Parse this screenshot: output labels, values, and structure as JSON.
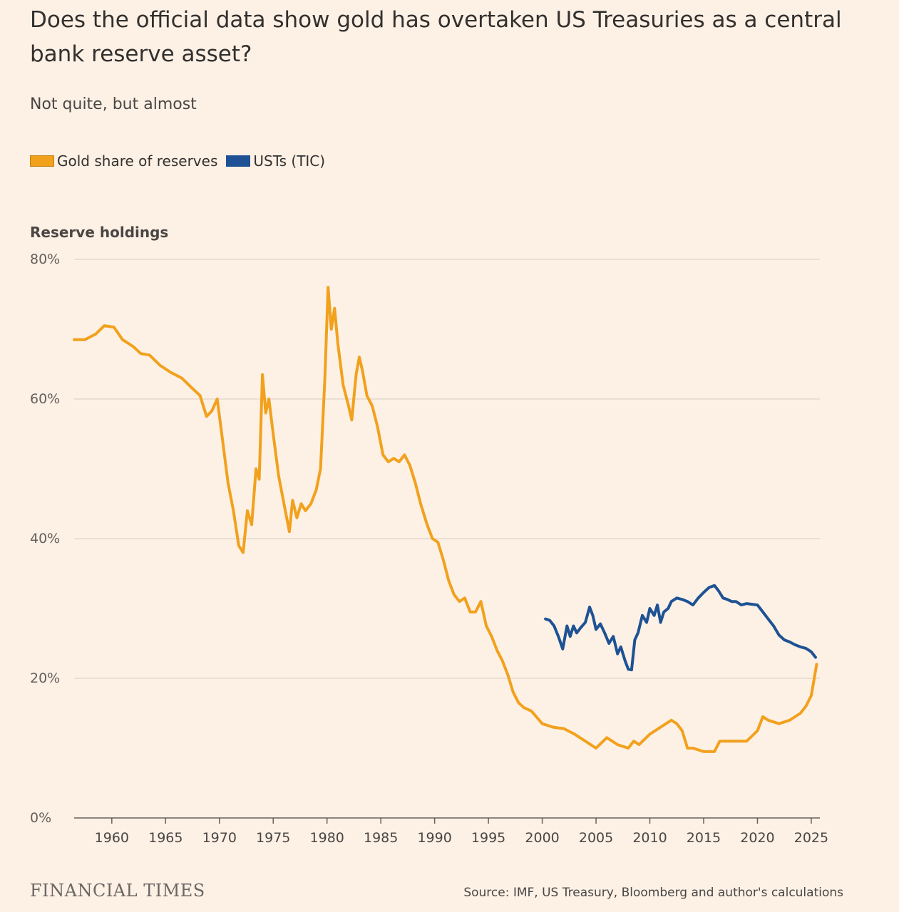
{
  "header": {
    "title": "Does the official data show gold has overtaken US Treasuries as a central bank reserve asset?",
    "subtitle": "Not quite, but almost"
  },
  "legend": [
    {
      "label": "Gold share of reserves",
      "color": "#f2a11d"
    },
    {
      "label": "USTs (TIC)",
      "color": "#1e5294"
    }
  ],
  "footer": {
    "brand": "FINANCIAL TIMES",
    "source": "Source: IMF, US Treasury, Bloomberg and author's calculations"
  },
  "chart_data": {
    "type": "line",
    "title": "Does the official data show gold has overtaken US Treasuries as a central bank reserve asset?",
    "subtitle": "Not quite, but almost",
    "ylabel": "Reserve holdings",
    "xlabel": "",
    "xlim": [
      1956.5,
      2025.8
    ],
    "ylim": [
      0,
      80
    ],
    "yticks": [
      0,
      20,
      40,
      60,
      80
    ],
    "ytick_labels": [
      "0%",
      "20%",
      "40%",
      "60%",
      "80%"
    ],
    "xticks": [
      1960,
      1965,
      1970,
      1975,
      1980,
      1985,
      1990,
      1995,
      2000,
      2005,
      2010,
      2015,
      2020,
      2025
    ],
    "xtick_labels": [
      "1960",
      "1965",
      "1970",
      "1975",
      "1980",
      "1985",
      "1990",
      "1995",
      "2000",
      "2005",
      "2010",
      "2015",
      "2020",
      "2025"
    ],
    "grid": true,
    "series": [
      {
        "name": "Gold share of reserves",
        "color": "#f2a11d",
        "x": [
          1956.5,
          1957.5,
          1958.5,
          1959.3,
          1960.2,
          1961,
          1962,
          1962.7,
          1963.5,
          1964.5,
          1965.5,
          1966.5,
          1967.5,
          1968.2,
          1968.8,
          1969.3,
          1969.8,
          1970.3,
          1970.8,
          1971.3,
          1971.8,
          1972.2,
          1972.6,
          1973,
          1973.4,
          1973.7,
          1974,
          1974.3,
          1974.6,
          1975,
          1975.5,
          1976,
          1976.5,
          1976.8,
          1977.2,
          1977.6,
          1978,
          1978.5,
          1979,
          1979.4,
          1979.8,
          1980.1,
          1980.4,
          1980.7,
          1981,
          1981.5,
          1982,
          1982.3,
          1982.7,
          1983,
          1983.3,
          1983.7,
          1984.2,
          1984.7,
          1985.2,
          1985.7,
          1986.2,
          1986.7,
          1987.2,
          1987.7,
          1988.2,
          1988.7,
          1989.3,
          1989.8,
          1990.3,
          1990.8,
          1991.3,
          1991.8,
          1992.3,
          1992.8,
          1993.3,
          1993.8,
          1994.3,
          1994.8,
          1995.3,
          1995.8,
          1996.3,
          1996.8,
          1997.3,
          1997.8,
          1998.3,
          1999,
          2000,
          2001,
          2002,
          2003,
          2004,
          2005,
          2006,
          2007,
          2008,
          2008.5,
          2009,
          2010,
          2011,
          2012,
          2012.5,
          2013,
          2013.5,
          2014,
          2015,
          2016,
          2016.5,
          2017,
          2018,
          2019,
          2020,
          2020.5,
          2021,
          2022,
          2023,
          2024,
          2024.5,
          2025,
          2025.5
        ],
        "values": [
          68.5,
          68.5,
          69.3,
          70.5,
          70.3,
          68.5,
          67.5,
          66.5,
          66.3,
          64.8,
          63.8,
          63,
          61.5,
          60.5,
          57.5,
          58.3,
          60,
          54,
          48,
          44,
          39,
          38,
          44,
          42,
          50,
          48.5,
          63.5,
          58,
          60,
          55,
          49,
          45,
          41,
          45.5,
          43,
          45,
          44,
          45,
          47,
          50,
          63,
          76,
          70,
          73,
          68,
          62,
          59,
          57,
          63.5,
          66,
          64,
          60.5,
          59,
          56,
          52,
          51,
          51.5,
          51,
          52,
          50.5,
          48,
          45,
          42,
          40,
          39.5,
          37,
          34,
          32,
          31,
          31.5,
          29.5,
          29.5,
          31,
          27.5,
          26,
          24,
          22.5,
          20.5,
          18,
          16.5,
          15.8,
          15.3,
          13.5,
          13,
          12.8,
          12,
          11,
          10,
          11.5,
          10.5,
          10,
          11,
          10.5,
          12,
          13,
          14,
          13.5,
          12.5,
          10,
          10,
          9.5,
          9.5,
          11,
          11,
          11,
          11,
          12.5,
          14.5,
          14,
          13.5,
          14,
          15,
          16,
          17.5,
          22
        ]
      },
      {
        "name": "USTs (TIC)",
        "color": "#1e5294",
        "x": [
          2000.3,
          2000.7,
          2001.1,
          2001.5,
          2001.9,
          2002.3,
          2002.6,
          2002.9,
          2003.2,
          2003.6,
          2004,
          2004.4,
          2004.7,
          2005,
          2005.4,
          2005.8,
          2006.2,
          2006.6,
          2007,
          2007.3,
          2007.7,
          2008,
          2008.3,
          2008.6,
          2008.9,
          2009.3,
          2009.7,
          2010,
          2010.4,
          2010.7,
          2011,
          2011.3,
          2011.7,
          2012,
          2012.5,
          2013,
          2013.5,
          2014,
          2014.5,
          2015,
          2015.5,
          2016,
          2016.4,
          2016.8,
          2017.2,
          2017.6,
          2018,
          2018.5,
          2019,
          2019.5,
          2020,
          2020.5,
          2021,
          2021.5,
          2022,
          2022.5,
          2023,
          2023.5,
          2024,
          2024.5,
          2025,
          2025.4
        ],
        "values": [
          28.5,
          28.3,
          27.5,
          26,
          24.2,
          27.5,
          26,
          27.5,
          26.5,
          27.3,
          28,
          30.2,
          29,
          27,
          27.8,
          26.5,
          25,
          26,
          23.5,
          24.5,
          22.5,
          21.3,
          21.2,
          25.5,
          26.5,
          29,
          28,
          30,
          29,
          30.5,
          28,
          29.5,
          30,
          31,
          31.5,
          31.3,
          31,
          30.5,
          31.5,
          32.3,
          33,
          33.3,
          32.5,
          31.5,
          31.3,
          31,
          31,
          30.5,
          30.7,
          30.6,
          30.5,
          29.5,
          28.5,
          27.5,
          26.2,
          25.5,
          25.2,
          24.8,
          24.5,
          24.3,
          23.8,
          23
        ]
      }
    ]
  }
}
